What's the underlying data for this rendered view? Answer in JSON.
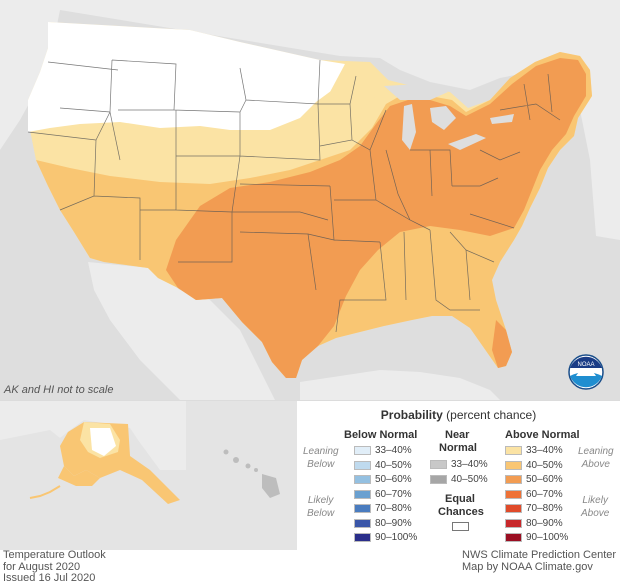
{
  "map": {
    "scale_note": "AK and HI not to scale",
    "logo_name": "NOAA"
  },
  "legend": {
    "title_bold": "Probability",
    "title_rest": " (percent chance)",
    "below_header": "Below Normal",
    "near_header_1": "Near",
    "near_header_2": "Normal",
    "above_header": "Above Normal",
    "leaning_below_1": "Leaning",
    "leaning_below_2": "Below",
    "likely_below_1": "Likely",
    "likely_below_2": "Below",
    "leaning_above_1": "Leaning",
    "leaning_above_2": "Above",
    "likely_above_1": "Likely",
    "likely_above_2": "Above",
    "equal_1": "Equal",
    "equal_2": "Chances",
    "below": [
      {
        "label": "33–40%",
        "color": "#e1eef8"
      },
      {
        "label": "40–50%",
        "color": "#bfdaee"
      },
      {
        "label": "50–60%",
        "color": "#94c0e1"
      },
      {
        "label": "60–70%",
        "color": "#6aa0d0"
      },
      {
        "label": "70–80%",
        "color": "#4a7cbf"
      },
      {
        "label": "80–90%",
        "color": "#3a56a8"
      },
      {
        "label": "90–100%",
        "color": "#2a2e8a"
      }
    ],
    "near": [
      {
        "label": "33–40%",
        "color": "#c8c8c8"
      },
      {
        "label": "40–50%",
        "color": "#a6a6a6"
      }
    ],
    "above": [
      {
        "label": "33–40%",
        "color": "#fbe3a4"
      },
      {
        "label": "40–50%",
        "color": "#f9c673"
      },
      {
        "label": "50–60%",
        "color": "#f29c52"
      },
      {
        "label": "60–70%",
        "color": "#ee7237"
      },
      {
        "label": "70–80%",
        "color": "#e04b2a"
      },
      {
        "label": "80–90%",
        "color": "#c8282b"
      },
      {
        "label": "90–100%",
        "color": "#9a0e22"
      }
    ]
  },
  "footer": {
    "left_1": "Temperature Outlook",
    "left_2": "for August 2020",
    "left_3": "Issued 16 Jul 2020",
    "right_1": "NWS Climate Prediction Center",
    "right_2": "Map by NOAA Climate.gov"
  }
}
